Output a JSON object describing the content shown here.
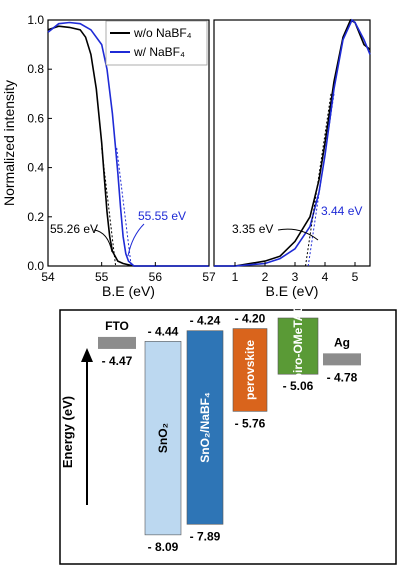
{
  "chart_data": [
    {
      "type": "line",
      "panel": "left",
      "xlabel": "B.E (eV)",
      "ylabel": "Normalized intensity",
      "xlim": [
        54,
        57
      ],
      "ylim": [
        0,
        1.0
      ],
      "x_ticks": [
        "54",
        "55",
        "56",
        "57"
      ],
      "y_ticks": [
        "0.0",
        "0.2",
        "0.4",
        "0.6",
        "0.8",
        "1.0"
      ],
      "legend": {
        "placement": "top-right",
        "entries": [
          {
            "label": "w/o NaBF₄",
            "color": "#000000"
          },
          {
            "label": "w/ NaBF₄",
            "color": "#1f2bd6"
          }
        ]
      },
      "series": [
        {
          "name": "w/o NaBF₄",
          "color": "#000000",
          "x": [
            54.0,
            54.2,
            54.4,
            54.6,
            54.7,
            54.8,
            54.9,
            55.0,
            55.05,
            55.1,
            55.15,
            55.2,
            55.3,
            55.4,
            55.5,
            55.6,
            55.8,
            56.0,
            57.0
          ],
          "y": [
            0.96,
            0.975,
            0.97,
            0.96,
            0.93,
            0.86,
            0.72,
            0.5,
            0.36,
            0.22,
            0.12,
            0.06,
            0.02,
            0.01,
            0.005,
            0.0,
            0.0,
            0.0,
            0.0
          ]
        },
        {
          "name": "w/ NaBF₄",
          "color": "#1f2bd6",
          "x": [
            54.0,
            54.2,
            54.4,
            54.6,
            54.8,
            55.0,
            55.1,
            55.2,
            55.3,
            55.35,
            55.4,
            55.45,
            55.5,
            55.55,
            55.6,
            55.7,
            56.0,
            57.0
          ],
          "y": [
            0.95,
            0.985,
            0.99,
            0.985,
            0.96,
            0.9,
            0.8,
            0.62,
            0.38,
            0.24,
            0.12,
            0.05,
            0.02,
            0.01,
            0.0,
            0.0,
            0.0,
            0.0
          ]
        }
      ],
      "annotations": [
        {
          "text": "55.26 eV",
          "color": "#000000",
          "x": 55.26,
          "y": 0
        },
        {
          "text": "55.55 eV",
          "color": "#1f2bd6",
          "x": 55.55,
          "y": 0
        }
      ]
    },
    {
      "type": "line",
      "panel": "right",
      "xlabel": "B.E (eV)",
      "ylabel": "",
      "xlim": [
        0.3,
        5.5
      ],
      "ylim": [
        0,
        1.0
      ],
      "x_ticks": [
        "1",
        "2",
        "3",
        "4",
        "5"
      ],
      "series": [
        {
          "name": "w/o NaBF₄",
          "color": "#000000",
          "x": [
            0.3,
            1.0,
            2.0,
            2.5,
            3.0,
            3.5,
            3.8,
            4.0,
            4.3,
            4.6,
            4.85,
            5.0,
            5.3,
            5.5
          ],
          "y": [
            0.0,
            0.0,
            0.02,
            0.04,
            0.1,
            0.2,
            0.35,
            0.5,
            0.75,
            0.93,
            1.0,
            0.99,
            0.9,
            0.88
          ]
        },
        {
          "name": "w/ NaBF₄",
          "color": "#1f2bd6",
          "x": [
            0.3,
            1.0,
            2.0,
            2.5,
            3.0,
            3.5,
            3.8,
            4.0,
            4.3,
            4.6,
            4.9,
            5.0,
            5.3,
            5.5
          ],
          "y": [
            0.0,
            0.0,
            0.01,
            0.03,
            0.07,
            0.16,
            0.3,
            0.45,
            0.72,
            0.92,
            1.0,
            0.99,
            0.92,
            0.86
          ]
        }
      ],
      "annotations": [
        {
          "text": "3.35 eV",
          "color": "#000000",
          "x": 3.35,
          "y": 0
        },
        {
          "text": "3.44 eV",
          "color": "#1f2bd6",
          "x": 3.44,
          "y": 0
        }
      ]
    },
    {
      "type": "bar",
      "panel": "energy-diagram",
      "ylabel": "Energy (eV)",
      "ylim": [
        -8.3,
        -4.0
      ],
      "bars": [
        {
          "label": "FTO",
          "kind": "electrode",
          "level": -4.47,
          "level_label": "- 4.47",
          "color": "#8c8c8c"
        },
        {
          "label": "SnO₂",
          "top": -4.44,
          "bottom": -8.09,
          "top_label": "- 4.44",
          "bottom_label": "- 8.09",
          "color": "#bcd8f0"
        },
        {
          "label": "SnO₂/NaBF₄",
          "top": -4.24,
          "bottom": -7.89,
          "top_label": "- 4.24",
          "bottom_label": "- 7.89",
          "color": "#2e75b6"
        },
        {
          "label": "perovskite",
          "top": -4.2,
          "bottom": -5.76,
          "top_label": "- 4.20",
          "bottom_label": "- 5.76",
          "color": "#d9641c"
        },
        {
          "label": "Spiro-OMeTAD",
          "top": -4.0,
          "bottom": -5.06,
          "top_label": "",
          "bottom_label": "- 5.06",
          "color": "#5a9a36"
        },
        {
          "label": "Ag",
          "kind": "electrode",
          "level": -4.78,
          "level_label": "- 4.78",
          "color": "#8c8c8c"
        }
      ]
    }
  ]
}
